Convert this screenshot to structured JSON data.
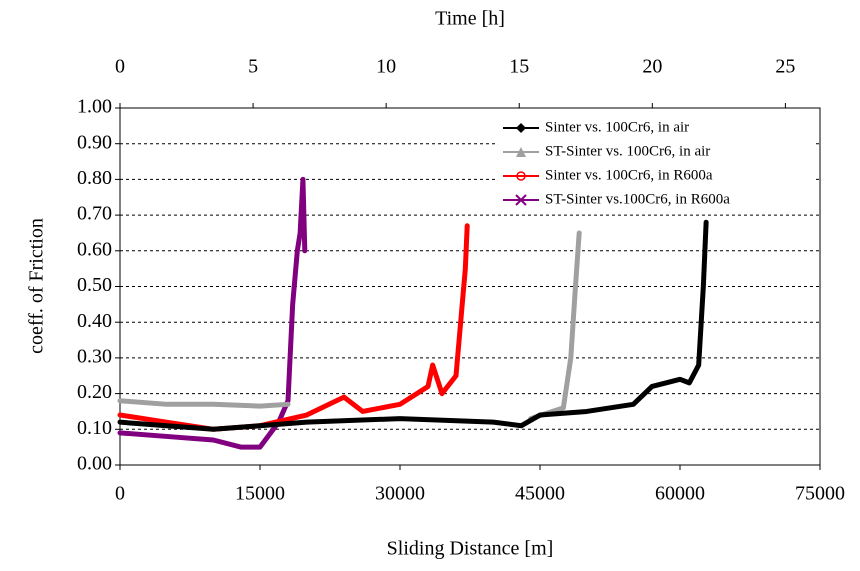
{
  "chart_data": {
    "type": "line",
    "x2label": "Time [h]",
    "ylabel": "coeff. of Friction",
    "xlabel": "Sliding Distance  [m]",
    "xlim": [
      0,
      75000
    ],
    "xticks": [
      0,
      15000,
      30000,
      45000,
      60000,
      75000
    ],
    "x2lim": [
      0,
      26.3
    ],
    "x2ticks": [
      0,
      5,
      10,
      15,
      20,
      25
    ],
    "ylim": [
      0,
      1
    ],
    "yticks": [
      {
        "value": 0,
        "label": "0.00"
      },
      {
        "value": 0.1,
        "label": "0.10"
      },
      {
        "value": 0.2,
        "label": "0.20"
      },
      {
        "value": 0.3,
        "label": "0.30"
      },
      {
        "value": 0.4,
        "label": "0.40"
      },
      {
        "value": 0.5,
        "label": "0.50"
      },
      {
        "value": 0.6,
        "label": "0.60"
      },
      {
        "value": 0.7,
        "label": "0.70"
      },
      {
        "value": 0.8,
        "label": "0.80"
      },
      {
        "value": 0.9,
        "label": "0.90"
      },
      {
        "value": 1,
        "label": "1.00"
      }
    ],
    "grid": true,
    "legend": "upper right",
    "series": [
      {
        "name": "Sinter vs. 100Cr6, in air",
        "color": "#000000",
        "marker": "diamond",
        "x": [
          0,
          5000,
          10000,
          15000,
          20000,
          30000,
          40000,
          43000,
          45000,
          50000,
          55000,
          57000,
          60000,
          61000,
          62000,
          62500,
          62800
        ],
        "values": [
          0.12,
          0.11,
          0.1,
          0.11,
          0.12,
          0.13,
          0.12,
          0.11,
          0.14,
          0.15,
          0.17,
          0.22,
          0.24,
          0.23,
          0.28,
          0.5,
          0.68
        ]
      },
      {
        "name": "ST-Sinter vs. 100Cr6, in air",
        "color": "#a0a0a0",
        "marker": "triangle",
        "x": [
          0,
          5000,
          10000,
          15000,
          18000,
          30000,
          44000,
          47500,
          48300,
          48800,
          49200
        ],
        "values": [
          0.18,
          0.17,
          0.17,
          0.165,
          0.17,
          null,
          0.13,
          0.16,
          0.3,
          0.5,
          0.65
        ]
      },
      {
        "name": "Sinter vs. 100Cr6, in R600a",
        "color": "#ff0000",
        "marker": "circle",
        "x": [
          0,
          5000,
          10000,
          15000,
          20000,
          24000,
          26000,
          30000,
          33000,
          33500,
          34500,
          36000,
          36500,
          37000,
          37200
        ],
        "values": [
          0.14,
          0.12,
          0.1,
          0.11,
          0.14,
          0.19,
          0.15,
          0.17,
          0.22,
          0.28,
          0.2,
          0.25,
          0.4,
          0.55,
          0.67
        ]
      },
      {
        "name": "ST-Sinter vs.100Cr6, in R600a",
        "color": "#800080",
        "marker": "cross",
        "x": [
          0,
          5000,
          10000,
          13000,
          15000,
          17000,
          18000,
          18500,
          19000,
          19300,
          19600,
          19800
        ],
        "values": [
          0.09,
          0.08,
          0.07,
          0.05,
          0.05,
          0.12,
          0.18,
          0.45,
          0.6,
          0.65,
          0.8,
          0.6
        ]
      }
    ]
  }
}
